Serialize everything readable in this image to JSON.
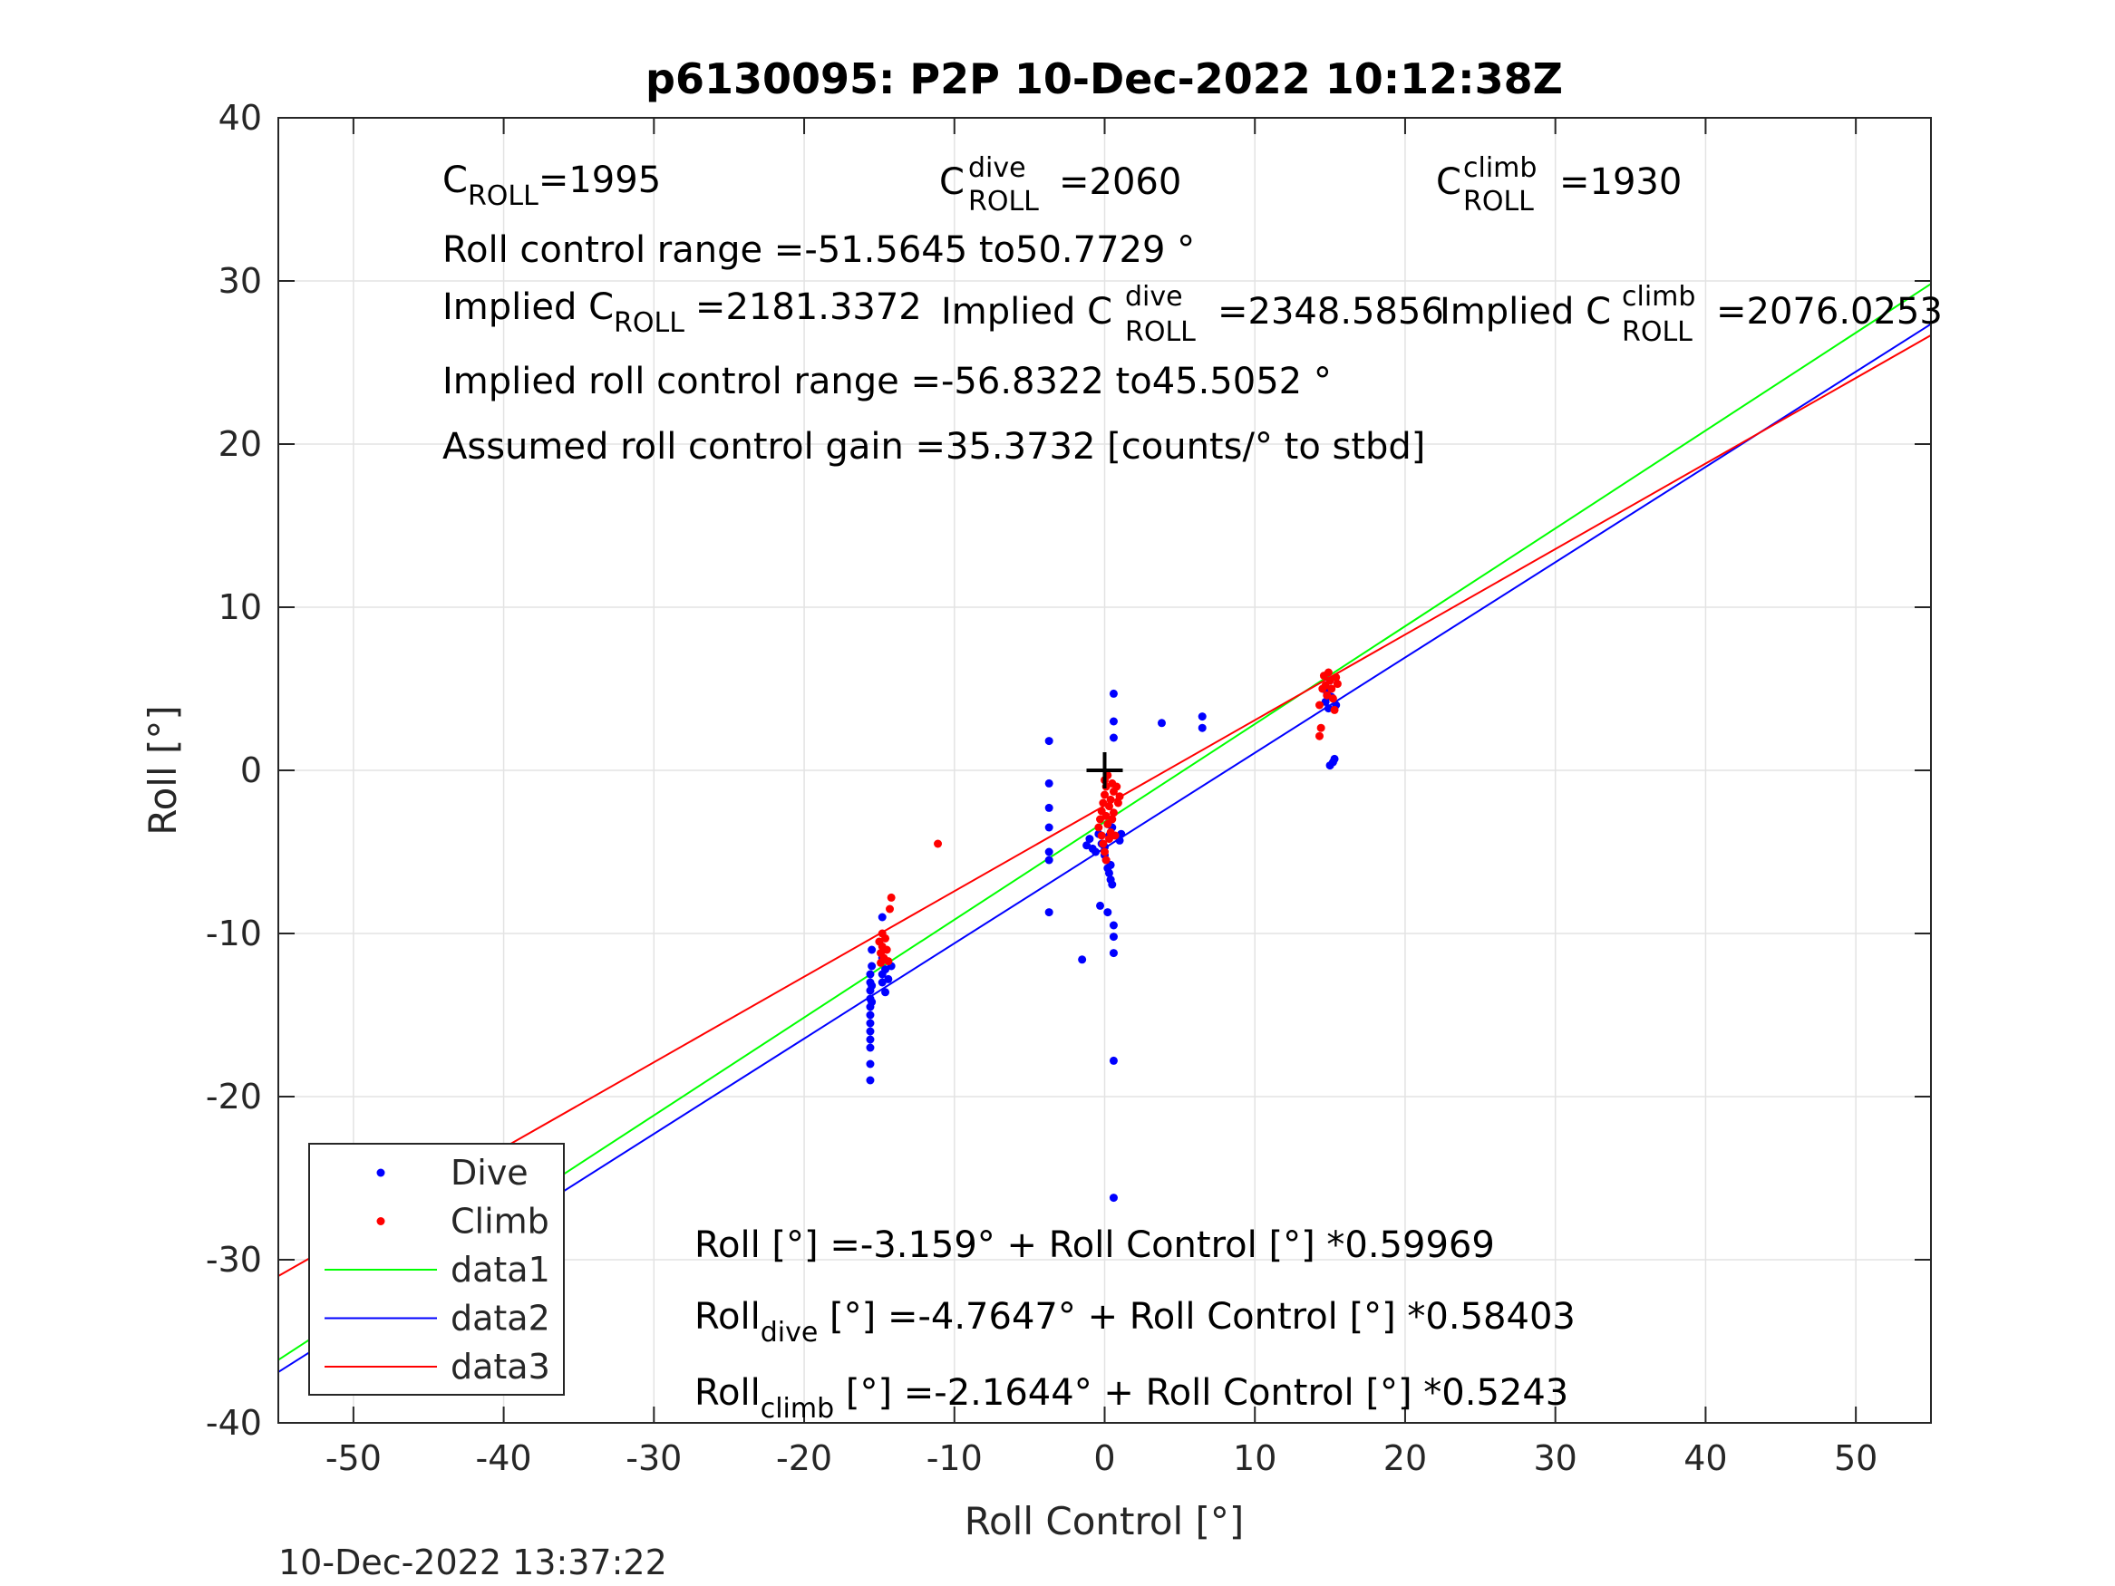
{
  "chart_data": {
    "type": "scatter",
    "title": "p6130095: P2P 10-Dec-2022 10:12:38Z",
    "xlabel": "Roll Control [°]",
    "ylabel": "Roll [°]",
    "xlim": [
      -55,
      55
    ],
    "ylim": [
      -40,
      40
    ],
    "xticks": [
      -50,
      -40,
      -30,
      -20,
      -10,
      0,
      10,
      20,
      30,
      40,
      50
    ],
    "yticks": [
      -40,
      -30,
      -20,
      -10,
      0,
      10,
      20,
      30,
      40
    ],
    "grid": true,
    "legend_position": "bottom-left",
    "footer_timestamp": "10-Dec-2022 13:37:22",
    "colors": {
      "dive": "#0000ff",
      "climb": "#ff0000",
      "data1": "#00ff00",
      "data2": "#0000ff",
      "data3": "#ff0000",
      "marker": "#000000"
    },
    "legend": [
      "Dive",
      "Climb",
      "data1",
      "data2",
      "data3"
    ],
    "series": [
      {
        "name": "Dive",
        "points": [
          [
            -15.6,
            -12.5
          ],
          [
            -15.6,
            -13.0
          ],
          [
            -15.6,
            -13.5
          ],
          [
            -15.6,
            -14.0
          ],
          [
            -15.6,
            -14.5
          ],
          [
            -15.6,
            -15.0
          ],
          [
            -15.6,
            -15.5
          ],
          [
            -15.6,
            -16.0
          ],
          [
            -15.6,
            -16.5
          ],
          [
            -15.6,
            -17.0
          ],
          [
            -15.6,
            -18.0
          ],
          [
            -15.6,
            -19.0
          ],
          [
            -15.5,
            -11.0
          ],
          [
            -15.5,
            -12.0
          ],
          [
            -15.5,
            -13.2
          ],
          [
            -15.5,
            -14.2
          ],
          [
            -14.8,
            -9.0
          ],
          [
            -14.8,
            -11.5
          ],
          [
            -14.8,
            -12.5
          ],
          [
            -14.8,
            -13.0
          ],
          [
            -14.6,
            -12.2
          ],
          [
            -14.6,
            -13.6
          ],
          [
            -14.4,
            -12.8
          ],
          [
            -14.2,
            -12.0
          ],
          [
            -3.7,
            1.8
          ],
          [
            -3.7,
            -0.8
          ],
          [
            -3.7,
            -2.3
          ],
          [
            -3.7,
            -3.5
          ],
          [
            -3.7,
            -5.0
          ],
          [
            -3.7,
            -5.5
          ],
          [
            -3.7,
            -8.7
          ],
          [
            -1.5,
            -11.6
          ],
          [
            -1.2,
            -4.6
          ],
          [
            -1.0,
            -4.2
          ],
          [
            -0.8,
            -4.8
          ],
          [
            -0.6,
            -5.0
          ],
          [
            -0.4,
            -3.9
          ],
          [
            -0.3,
            -8.3
          ],
          [
            -0.2,
            -4.5
          ],
          [
            0.0,
            -4.7
          ],
          [
            0.0,
            -5.2
          ],
          [
            0.1,
            -5.5
          ],
          [
            0.2,
            -6.0
          ],
          [
            0.2,
            -8.7
          ],
          [
            0.3,
            -4.0
          ],
          [
            0.3,
            -6.3
          ],
          [
            0.4,
            -5.8
          ],
          [
            0.4,
            -6.7
          ],
          [
            0.5,
            -3.5
          ],
          [
            0.5,
            -7.0
          ],
          [
            0.6,
            4.7
          ],
          [
            0.6,
            3.0
          ],
          [
            0.6,
            2.0
          ],
          [
            0.6,
            -9.5
          ],
          [
            0.6,
            -10.2
          ],
          [
            0.6,
            -11.2
          ],
          [
            0.6,
            -17.8
          ],
          [
            0.6,
            -26.2
          ],
          [
            1.0,
            -4.3
          ],
          [
            1.1,
            -3.9
          ],
          [
            3.8,
            2.9
          ],
          [
            6.5,
            3.3
          ],
          [
            6.5,
            2.6
          ],
          [
            14.7,
            4.2
          ],
          [
            14.8,
            4.8
          ],
          [
            14.9,
            3.8
          ],
          [
            15.0,
            0.3
          ],
          [
            15.0,
            5.5
          ],
          [
            15.1,
            4.5
          ],
          [
            15.2,
            0.5
          ],
          [
            15.3,
            0.7
          ],
          [
            15.4,
            4.0
          ]
        ]
      },
      {
        "name": "Climb",
        "points": [
          [
            -15.0,
            -10.5
          ],
          [
            -14.9,
            -11.2
          ],
          [
            -14.9,
            -11.8
          ],
          [
            -14.8,
            -10.0
          ],
          [
            -14.8,
            -10.8
          ],
          [
            -14.7,
            -11.5
          ],
          [
            -14.6,
            -10.3
          ],
          [
            -14.5,
            -11.0
          ],
          [
            -14.4,
            -11.7
          ],
          [
            -14.3,
            -8.5
          ],
          [
            -14.2,
            -7.8
          ],
          [
            -11.1,
            -4.5
          ],
          [
            -0.4,
            -3.5
          ],
          [
            -0.3,
            -3.0
          ],
          [
            -0.2,
            -2.5
          ],
          [
            -0.2,
            -4.0
          ],
          [
            -0.1,
            -2.0
          ],
          [
            -0.1,
            -4.5
          ],
          [
            0.0,
            -1.5
          ],
          [
            0.0,
            -5.0
          ],
          [
            0.0,
            -0.6
          ],
          [
            0.1,
            -1.0
          ],
          [
            0.1,
            -2.8
          ],
          [
            0.1,
            -5.5
          ],
          [
            0.2,
            -3.3
          ],
          [
            0.2,
            -0.3
          ],
          [
            0.3,
            -2.2
          ],
          [
            0.3,
            -4.2
          ],
          [
            0.4,
            -1.8
          ],
          [
            0.4,
            -3.8
          ],
          [
            0.5,
            -0.8
          ],
          [
            0.5,
            -3.0
          ],
          [
            0.6,
            -1.3
          ],
          [
            0.6,
            -2.6
          ],
          [
            0.7,
            -4.0
          ],
          [
            0.8,
            -1.0
          ],
          [
            0.9,
            -2.0
          ],
          [
            1.0,
            -1.6
          ],
          [
            14.3,
            4.0
          ],
          [
            14.3,
            2.1
          ],
          [
            14.4,
            2.6
          ],
          [
            14.5,
            5.0
          ],
          [
            14.6,
            5.8
          ],
          [
            14.7,
            5.2
          ],
          [
            14.8,
            4.6
          ],
          [
            14.9,
            6.0
          ],
          [
            15.0,
            5.5
          ],
          [
            15.1,
            5.0
          ],
          [
            15.2,
            4.4
          ],
          [
            15.3,
            3.7
          ],
          [
            15.4,
            5.7
          ],
          [
            15.5,
            5.3
          ]
        ]
      }
    ],
    "fit_lines": [
      {
        "name": "data1",
        "intercept": -3.159,
        "slope": 0.59969
      },
      {
        "name": "data2",
        "intercept": -4.7647,
        "slope": 0.58403
      },
      {
        "name": "data3",
        "intercept": -2.1644,
        "slope": 0.5243
      }
    ],
    "zero_marker": {
      "x": 0,
      "y": 0
    },
    "annotations": {
      "c_roll": {
        "base": "C",
        "sub": "ROLL",
        "value": "=1995"
      },
      "c_roll_dive": {
        "base": "C",
        "sup": "dive",
        "sub": "ROLL",
        "value": "=2060"
      },
      "c_roll_climb": {
        "base": "C",
        "sup": "climb",
        "sub": "ROLL",
        "value": "=1930"
      },
      "range": "Roll control range =-51.5645 to50.7729 °",
      "implied_c_roll": {
        "prefix": "Implied C",
        "sub": "ROLL",
        "value": "=2181.3372"
      },
      "implied_c_roll_dive": {
        "prefix": "Implied C",
        "sup": "dive",
        "sub": "ROLL",
        "value": "=2348.5856"
      },
      "implied_c_roll_climb": {
        "prefix": "Implied C",
        "sup": "climb",
        "sub": "ROLL",
        "value": "=2076.0253"
      },
      "implied_range": "Implied roll control range =-56.8322 to45.5052 °",
      "gain": "Assumed roll control gain =35.3732 [counts/° to stbd]",
      "eq1": "Roll [°] =-3.159° + Roll Control [°] *0.59969",
      "eq2": {
        "base": "Roll",
        "sub": "dive",
        "rest": " [°] =-4.7647° + Roll Control [°] *0.58403"
      },
      "eq3": {
        "base": "Roll",
        "sub": "climb",
        "rest": " [°] =-2.1644° + Roll Control [°] *0.5243"
      }
    }
  }
}
